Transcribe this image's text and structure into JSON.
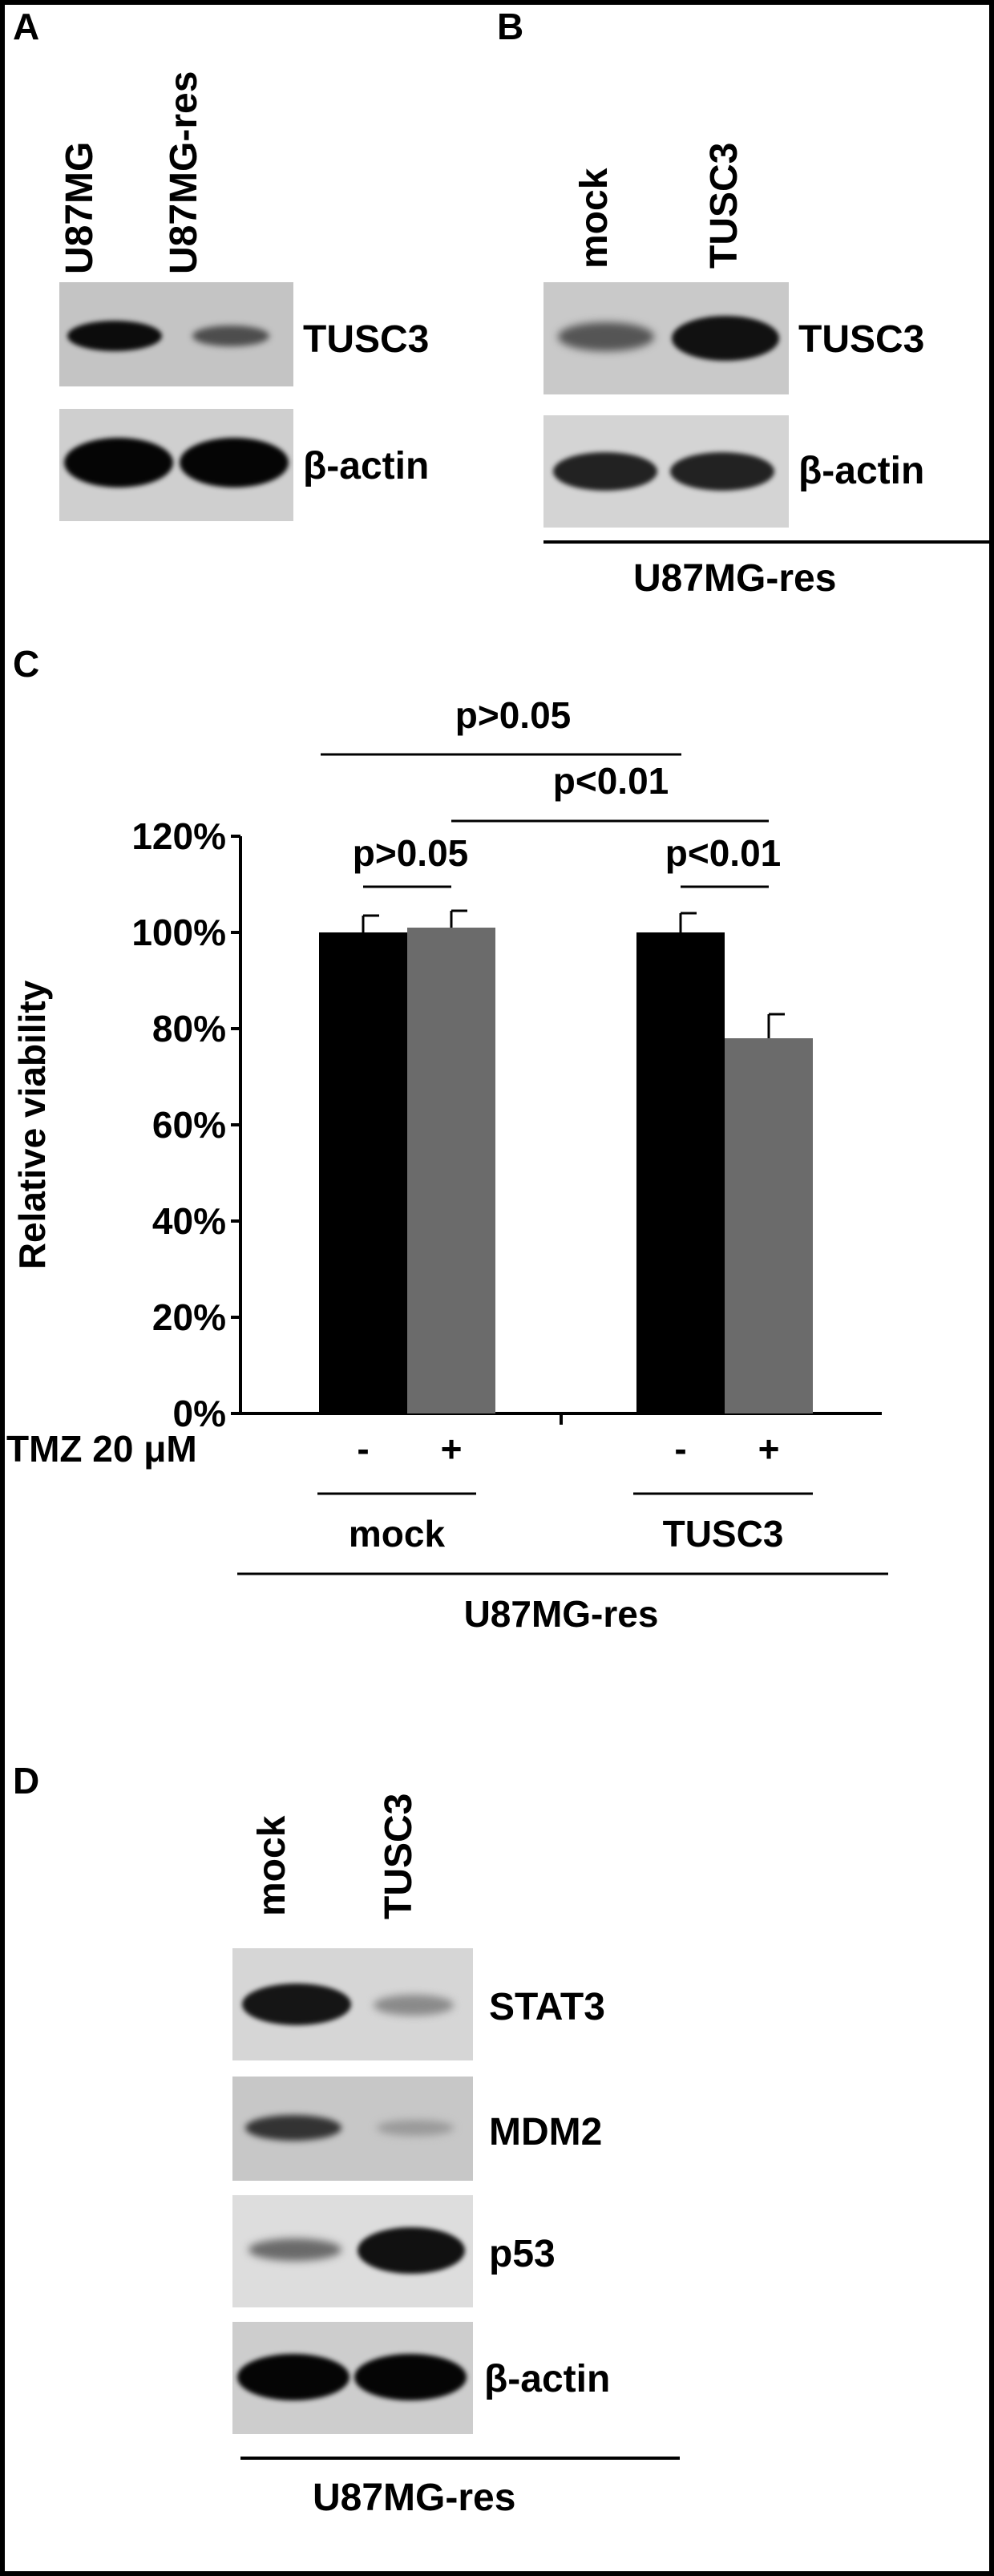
{
  "panels": {
    "a": "A",
    "b": "B",
    "c": "C",
    "d": "D"
  },
  "panel_a": {
    "lanes": [
      "U87MG",
      "U87MG-res"
    ],
    "rows": [
      "TUSC3",
      "β-actin"
    ]
  },
  "panel_b": {
    "lanes": [
      "mock",
      "TUSC3"
    ],
    "rows": [
      "TUSC3",
      "β-actin"
    ],
    "group": "U87MG-res"
  },
  "panel_d": {
    "lanes": [
      "mock",
      "TUSC3"
    ],
    "rows": [
      "STAT3",
      "MDM2",
      "p53",
      "β-actin"
    ],
    "group": "U87MG-res"
  },
  "chart_data": {
    "type": "bar",
    "ylabel": "Relative viability",
    "ylim": [
      0,
      120
    ],
    "yticks": [
      "0%",
      "20%",
      "40%",
      "60%",
      "80%",
      "100%",
      "120%"
    ],
    "treatment_label": "TMZ 20 μM",
    "groups": [
      "mock",
      "TUSC3"
    ],
    "group_caption": "U87MG-res",
    "bars": [
      {
        "group": "mock",
        "tmz": "-",
        "value": 100,
        "error": 3.5,
        "color": "#000000"
      },
      {
        "group": "mock",
        "tmz": "+",
        "value": 101,
        "error": 3.5,
        "color": "#6b6b6b"
      },
      {
        "group": "TUSC3",
        "tmz": "-",
        "value": 100,
        "error": 4.0,
        "color": "#000000"
      },
      {
        "group": "TUSC3",
        "tmz": "+",
        "value": 78,
        "error": 5.0,
        "color": "#6b6b6b"
      }
    ],
    "significance": [
      "p>0.05",
      "p<0.01",
      "p>0.05",
      "p<0.01"
    ]
  }
}
